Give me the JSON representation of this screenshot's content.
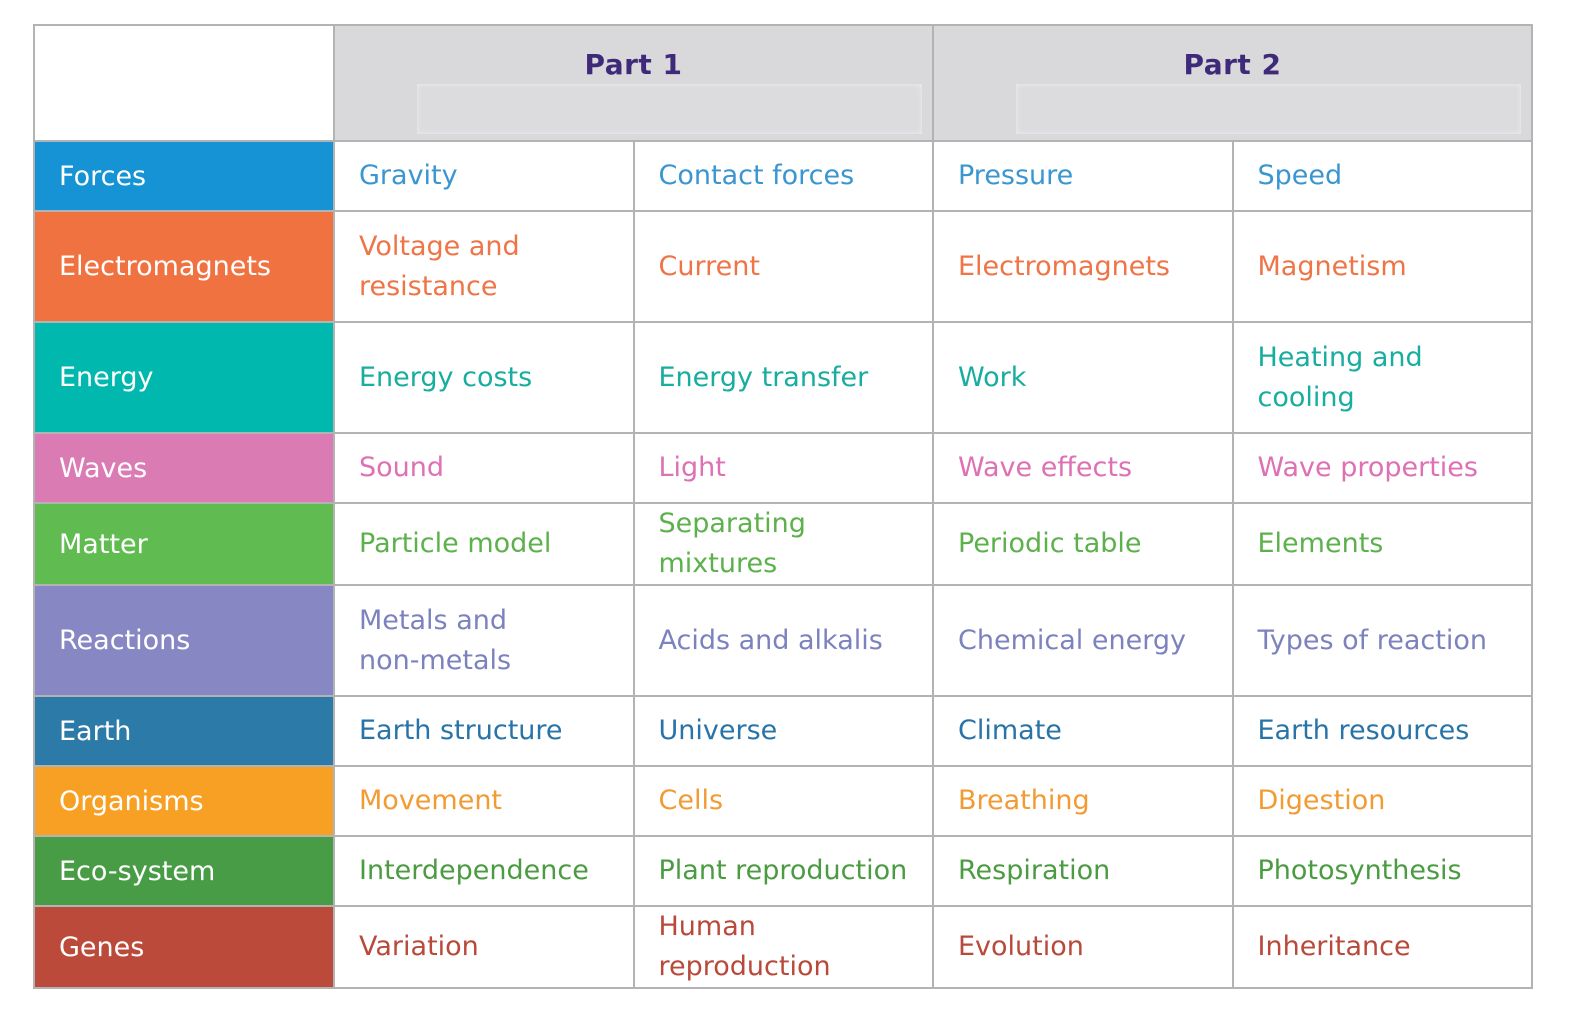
{
  "header": {
    "part1": "Part 1",
    "part2": "Part 2"
  },
  "rows": [
    {
      "topic": "Forces",
      "color": "#1593d4",
      "text_color": "#3a96d1",
      "cells": [
        "Gravity",
        "Contact forces",
        "Pressure",
        "Speed"
      ]
    },
    {
      "topic": "Electromagnets",
      "color": "#f07240",
      "text_color": "#ef7446",
      "cells": [
        "Voltage and resistance",
        "Current",
        "Electromagnets",
        "Magnetism"
      ]
    },
    {
      "topic": "Energy",
      "color": "#00b8ae",
      "text_color": "#17ad9f",
      "cells": [
        "Energy costs",
        "Energy transfer",
        "Work",
        "Heating and cooling"
      ]
    },
    {
      "topic": "Waves",
      "color": "#da7bb4",
      "text_color": "#de70b4",
      "cells": [
        "Sound",
        "Light",
        "Wave effects",
        "Wave properties"
      ]
    },
    {
      "topic": "Matter",
      "color": "#60bb50",
      "text_color": "#5db14c",
      "cells": [
        "Particle model",
        "Separating mixtures",
        "Periodic table",
        "Elements"
      ]
    },
    {
      "topic": "Reactions",
      "color": "#8787c4",
      "text_color": "#7c82bd",
      "cells": [
        "Metals and non-metals",
        "Acids and alkalis",
        "Chemical energy",
        "Types of reaction"
      ]
    },
    {
      "topic": "Earth",
      "color": "#2c7aa8",
      "text_color": "#2873a8",
      "cells": [
        "Earth structure",
        "Universe",
        "Climate",
        "Earth resources"
      ]
    },
    {
      "topic": "Organisms",
      "color": "#f8a024",
      "text_color": "#f29b33",
      "cells": [
        "Movement",
        "Cells",
        "Breathing",
        "Digestion"
      ]
    },
    {
      "topic": "Eco-system",
      "color": "#479c45",
      "text_color": "#4b9b42",
      "cells": [
        "Interdependence",
        "Plant reproduction",
        "Respiration",
        "Photosynthesis"
      ]
    },
    {
      "topic": "Genes",
      "color": "#bb4a3a",
      "text_color": "#b9493a",
      "cells": [
        "Variation",
        "Human reproduction",
        "Evolution",
        "Inheritance"
      ]
    }
  ]
}
